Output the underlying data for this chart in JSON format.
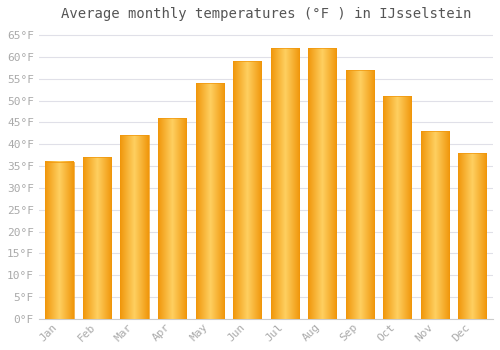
{
  "title": "Average monthly temperatures (°F ) in IJsselstein",
  "months": [
    "Jan",
    "Feb",
    "Mar",
    "Apr",
    "May",
    "Jun",
    "Jul",
    "Aug",
    "Sep",
    "Oct",
    "Nov",
    "Dec"
  ],
  "values": [
    36,
    37,
    42,
    46,
    54,
    59,
    62,
    62,
    57,
    51,
    43,
    38
  ],
  "bar_color_center": "#FFD060",
  "bar_color_edge": "#F0960A",
  "background_color": "#FFFFFF",
  "grid_color": "#E0E0E8",
  "ylim": [
    0,
    67
  ],
  "yticks": [
    0,
    5,
    10,
    15,
    20,
    25,
    30,
    35,
    40,
    45,
    50,
    55,
    60,
    65
  ],
  "ytick_labels": [
    "0°F",
    "5°F",
    "10°F",
    "15°F",
    "20°F",
    "25°F",
    "30°F",
    "35°F",
    "40°F",
    "45°F",
    "50°F",
    "55°F",
    "60°F",
    "65°F"
  ],
  "title_fontsize": 10,
  "tick_fontsize": 8,
  "tick_color": "#AAAAAA",
  "title_color": "#555555",
  "font_family": "monospace",
  "bar_width": 0.75
}
